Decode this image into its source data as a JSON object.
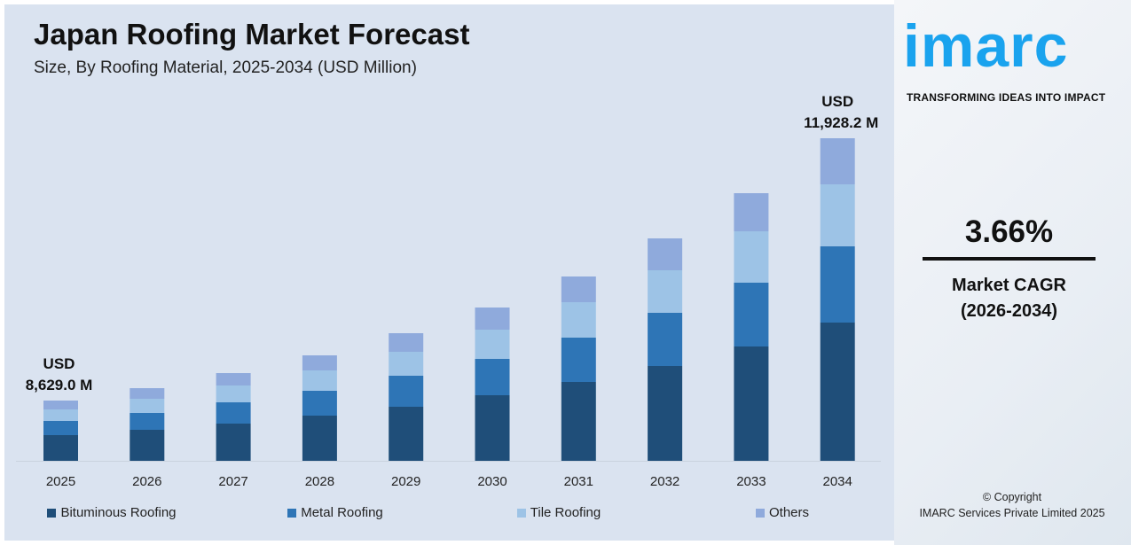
{
  "header": {
    "title": "Japan Roofing Market Forecast",
    "subtitle": "Size, By Roofing Material, 2025-2034 (USD Million)"
  },
  "chart_data": {
    "type": "bar",
    "stacked": true,
    "title": "Japan Roofing Market Forecast",
    "subtitle": "Size, By Roofing Material, 2025-2034 (USD Million)",
    "categories": [
      "2025",
      "2026",
      "2027",
      "2028",
      "2029",
      "2030",
      "2031",
      "2032",
      "2033",
      "2034"
    ],
    "series": [
      {
        "name": "Bituminous Roofing",
        "color": "#1f4e79",
        "values": [
          29,
          35,
          42,
          51,
          61,
          74,
          89,
          107,
          129,
          156
        ]
      },
      {
        "name": "Metal Roofing",
        "color": "#2e75b6",
        "values": [
          16,
          19,
          24,
          28,
          35,
          41,
          50,
          60,
          72,
          86
        ]
      },
      {
        "name": "Tile Roofing",
        "color": "#9dc3e6",
        "values": [
          13,
          16,
          19,
          23,
          27,
          33,
          40,
          48,
          58,
          70
        ]
      },
      {
        "name": "Others",
        "color": "#8faadc",
        "values": [
          10,
          12,
          14,
          17,
          21,
          25,
          29,
          36,
          43,
          52
        ]
      }
    ],
    "annotations": [
      {
        "category": "2025",
        "line1": "USD",
        "line2": "8,629.0 M"
      },
      {
        "category": "2034",
        "line1": "USD",
        "line2": "11,928.2 M"
      }
    ],
    "y_axis_shown": false,
    "grid": false,
    "legend_position": "bottom"
  },
  "sidebar": {
    "logo": "imarc",
    "tagline": "TRANSFORMING IDEAS INTO IMPACT",
    "cagr_value": "3.66%",
    "cagr_label": "Market CAGR",
    "cagr_period": "(2026-2034)",
    "copyright": "© Copyright",
    "company": "IMARC Services Private Limited 2025"
  }
}
